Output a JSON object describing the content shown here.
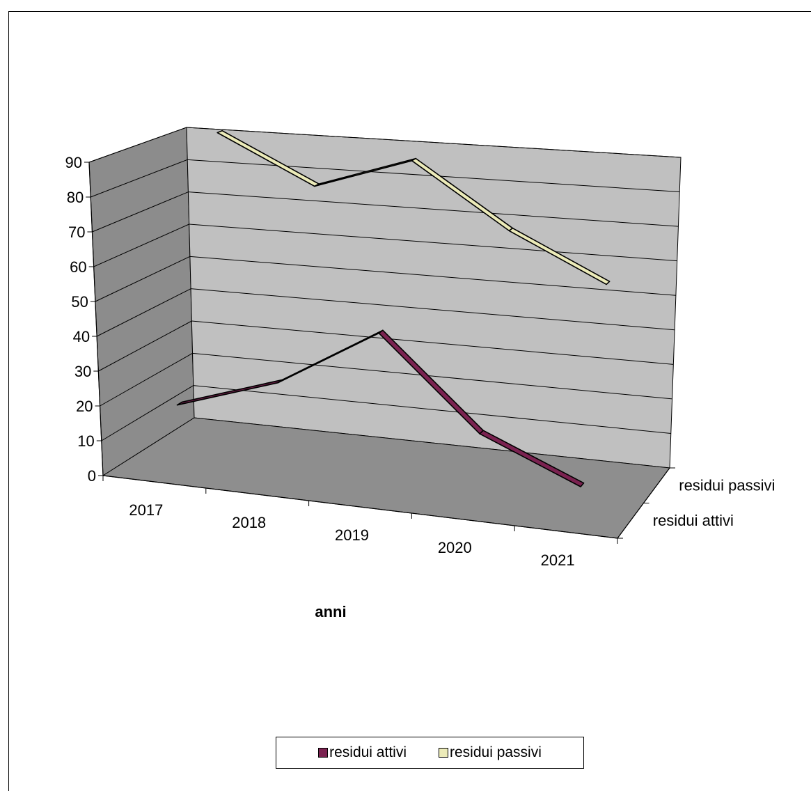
{
  "chart_data": {
    "type": "line",
    "style": "3d",
    "categories": [
      "2017",
      "2018",
      "2019",
      "2020",
      "2021"
    ],
    "series": [
      {
        "name": "residui attivi",
        "values": [
          18,
          28,
          46,
          20,
          8
        ],
        "color": "#7a2250"
      },
      {
        "name": "residui passivi",
        "values": [
          93,
          80,
          91,
          73,
          60
        ],
        "color": "#ecebb9"
      }
    ],
    "xlabel": "anni",
    "ylabel": "",
    "ylim": [
      0,
      90
    ],
    "yticks": [
      0,
      10,
      20,
      30,
      40,
      50,
      60,
      70,
      80,
      90
    ],
    "depth_labels": [
      "residui passivi",
      "residui attivi"
    ],
    "grid": true,
    "legend_position": "bottom"
  }
}
